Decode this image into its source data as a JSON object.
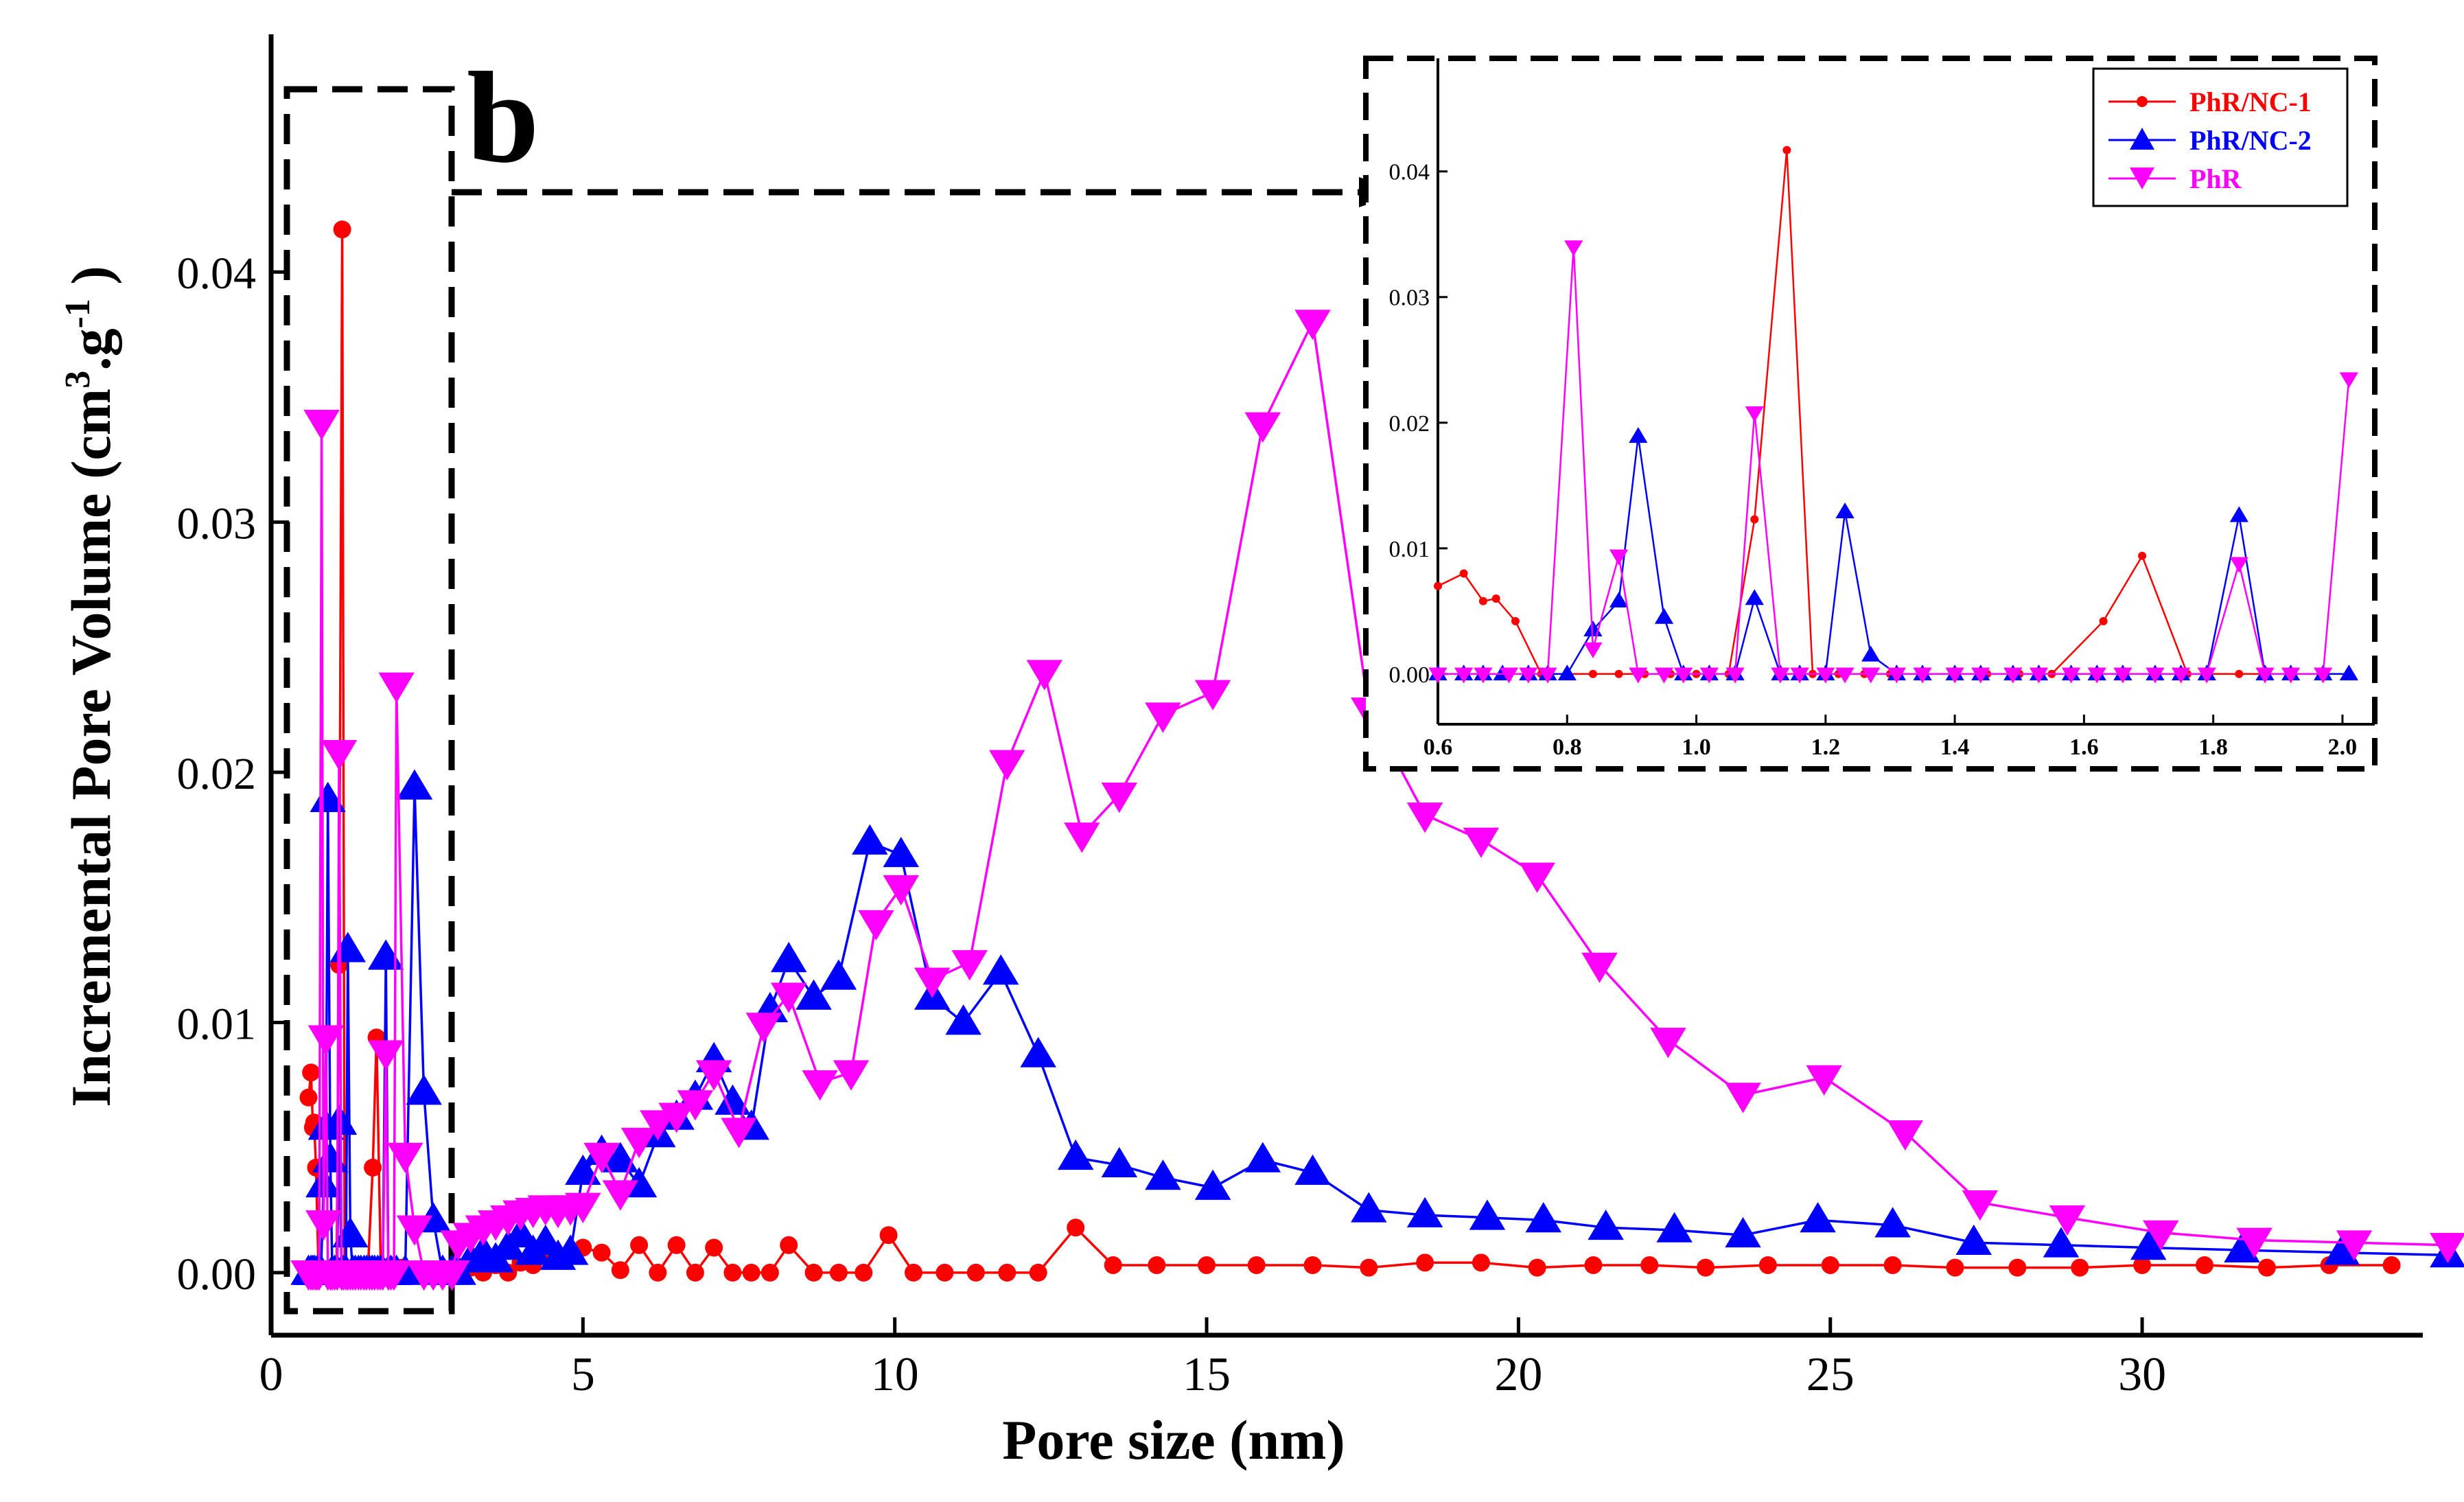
{
  "chart_data": [
    {
      "type": "line",
      "panel_label": "b",
      "xlabel": "Pore size (nm)",
      "ylabel_main": "Incremental Pore Volume (cm",
      "ylabel_sup1": "3",
      "ylabel_mid": ".g",
      "ylabel_sup2": "-1",
      "ylabel_end": " )",
      "xlim": [
        0,
        34.5
      ],
      "ylim": [
        -0.0025,
        0.0495
      ],
      "xticks": [
        0,
        5,
        10,
        15,
        20,
        25,
        30
      ],
      "xtick_labels": [
        "0",
        "5",
        "10",
        "15",
        "20",
        "25",
        "30"
      ],
      "yticks": [
        0.0,
        0.01,
        0.02,
        0.03,
        0.04
      ],
      "ytick_labels": [
        "0.00",
        "0.01",
        "0.02",
        "0.03",
        "0.04"
      ],
      "series": [
        {
          "name": "PhR/NC-1",
          "color": "#ff0000",
          "marker": "circle",
          "x": [
            0.6,
            0.64,
            0.67,
            0.69,
            0.72,
            0.76,
            0.8,
            0.84,
            0.88,
            0.92,
            0.96,
            1.0,
            1.05,
            1.09,
            1.14,
            1.18,
            1.22,
            1.26,
            1.3,
            1.35,
            1.4,
            1.45,
            1.5,
            1.55,
            1.63,
            1.69,
            1.76,
            1.84,
            1.92,
            2.01,
            2.1,
            2.2,
            2.3,
            2.4,
            2.5,
            2.6,
            2.7,
            2.8,
            2.9,
            3.0,
            3.2,
            3.4,
            3.6,
            3.8,
            4.0,
            4.2,
            4.4,
            4.6,
            4.8,
            5.0,
            5.3,
            5.6,
            5.9,
            6.2,
            6.5,
            6.8,
            7.1,
            7.4,
            7.7,
            8.0,
            8.3,
            8.7,
            9.1,
            9.5,
            9.9,
            10.3,
            10.8,
            11.3,
            11.8,
            12.3,
            12.9,
            13.5,
            14.2,
            15.0,
            15.8,
            16.7,
            17.6,
            18.5,
            19.4,
            20.3,
            21.2,
            22.1,
            23.0,
            24.0,
            25.0,
            26.0,
            27.0,
            28.0,
            29.0,
            30.0,
            31.0,
            32.0,
            33.0,
            34.0
          ],
          "y": [
            0.007,
            0.008,
            0.0058,
            0.006,
            0.0042,
            0.0,
            0.0,
            0.0,
            0.0,
            0.0,
            0.0,
            0.0,
            0.0,
            0.0123,
            0.0417,
            0.0,
            0.0,
            0.0,
            0.0,
            0.0,
            0.0,
            0.0,
            0.0,
            0.0,
            0.0042,
            0.0094,
            0.0,
            0.0,
            0.0,
            0.0,
            0.0002,
            0.0,
            0.0,
            0.0,
            0.0,
            0.0,
            0.0,
            0.0,
            0.0,
            0.0,
            0.0002,
            0.0,
            0.0003,
            0.0,
            0.0004,
            0.0003,
            0.0008,
            0.0006,
            0.0007,
            0.001,
            0.0008,
            0.0001,
            0.0011,
            0.0,
            0.0011,
            0.0,
            0.001,
            0.0,
            0.0,
            0.0,
            0.0011,
            0.0,
            0.0,
            0.0,
            0.0015,
            0.0,
            0.0,
            0.0,
            0.0,
            0.0,
            0.0018,
            0.0003,
            0.0003,
            0.0003,
            0.0003,
            0.0003,
            0.0002,
            0.0004,
            0.0004,
            0.0002,
            0.0003,
            0.0003,
            0.0002,
            0.0003,
            0.0003,
            0.0003,
            0.0002,
            0.0002,
            0.0002,
            0.0003,
            0.0003,
            0.0002,
            0.0003,
            0.0003
          ]
        },
        {
          "name": "PhR/NC-2",
          "color": "#0000ff",
          "marker": "triangle-up",
          "x": [
            0.6,
            0.64,
            0.67,
            0.7,
            0.74,
            0.77,
            0.8,
            0.84,
            0.88,
            0.91,
            0.95,
            0.98,
            1.02,
            1.06,
            1.09,
            1.13,
            1.16,
            1.2,
            1.23,
            1.27,
            1.31,
            1.35,
            1.4,
            1.44,
            1.49,
            1.53,
            1.58,
            1.62,
            1.66,
            1.71,
            1.75,
            1.79,
            1.84,
            1.88,
            1.92,
            1.97,
            2.01,
            2.15,
            2.3,
            2.45,
            2.6,
            2.75,
            2.9,
            3.0,
            3.2,
            3.4,
            3.6,
            3.8,
            4.0,
            4.2,
            4.4,
            4.6,
            4.8,
            5.0,
            5.3,
            5.6,
            5.9,
            6.2,
            6.5,
            6.8,
            7.1,
            7.4,
            7.7,
            8.0,
            8.3,
            8.7,
            9.1,
            9.6,
            10.1,
            10.6,
            11.1,
            11.7,
            12.3,
            12.9,
            13.6,
            14.3,
            15.1,
            15.9,
            16.7,
            17.6,
            18.5,
            19.5,
            20.4,
            21.4,
            22.5,
            23.6,
            24.8,
            26.0,
            27.3,
            28.7,
            30.1,
            31.6,
            33.2,
            34.9
          ],
          "y": [
            0.0,
            0.0,
            0.0,
            0.0,
            0.0,
            0.0,
            0.0,
            0.0035,
            0.0058,
            0.0189,
            0.0045,
            0.0,
            0.0,
            0.0,
            0.006,
            0.0,
            0.0,
            0.0,
            0.0129,
            0.0015,
            0.0,
            0.0,
            0.0,
            0.0,
            0.0,
            0.0,
            0.0,
            0.0,
            0.0,
            0.0,
            0.0,
            0.0,
            0.0126,
            0.0,
            0.0,
            0.0,
            0.0,
            0.0,
            0.0194,
            0.0072,
            0.0021,
            0.0,
            0.0,
            0.0,
            0.0005,
            0.0008,
            0.0005,
            0.001,
            0.0015,
            0.0008,
            0.0012,
            0.0006,
            0.0008,
            0.004,
            0.0048,
            0.0045,
            0.0035,
            0.0055,
            0.0062,
            0.007,
            0.0085,
            0.0068,
            0.0058,
            0.0105,
            0.0125,
            0.011,
            0.0118,
            0.0172,
            0.0167,
            0.011,
            0.01,
            0.012,
            0.0087,
            0.0046,
            0.0043,
            0.0038,
            0.0034,
            0.0045,
            0.004,
            0.0025,
            0.0023,
            0.0022,
            0.0021,
            0.0018,
            0.0017,
            0.0015,
            0.0021,
            0.0019,
            0.0012,
            0.0011,
            0.001,
            0.0009,
            0.0008,
            0.0007
          ]
        },
        {
          "name": "PhR",
          "color": "#ff00ff",
          "marker": "triangle-down",
          "x": [
            0.6,
            0.64,
            0.67,
            0.71,
            0.74,
            0.77,
            0.81,
            0.84,
            0.88,
            0.91,
            0.95,
            0.98,
            1.02,
            1.06,
            1.09,
            1.13,
            1.16,
            1.2,
            1.23,
            1.27,
            1.31,
            1.35,
            1.4,
            1.44,
            1.49,
            1.53,
            1.58,
            1.62,
            1.66,
            1.71,
            1.75,
            1.79,
            1.84,
            1.88,
            1.92,
            1.97,
            2.01,
            2.15,
            2.3,
            2.45,
            2.6,
            2.75,
            2.9,
            3.0,
            3.2,
            3.4,
            3.6,
            3.8,
            4.0,
            4.2,
            4.4,
            4.6,
            4.8,
            5.0,
            5.3,
            5.6,
            5.9,
            6.2,
            6.5,
            6.8,
            7.1,
            7.5,
            7.9,
            8.3,
            8.8,
            9.3,
            9.7,
            10.1,
            10.6,
            11.2,
            11.8,
            12.4,
            13.0,
            13.6,
            14.3,
            15.1,
            15.9,
            16.7,
            17.6,
            18.5,
            19.4,
            20.3,
            21.3,
            22.4,
            23.6,
            24.9,
            26.2,
            27.4,
            28.8,
            30.3,
            31.8,
            33.4,
            34.9
          ],
          "y": [
            0.0,
            0.0,
            0.0,
            0.0,
            0.0,
            0.0,
            0.034,
            0.002,
            0.0094,
            0.0,
            0.0,
            0.0,
            0.0,
            0.0,
            0.0208,
            0.0,
            0.0,
            0.0,
            0.0,
            0.0,
            0.0,
            0.0,
            0.0,
            0.0,
            0.0,
            0.0,
            0.0,
            0.0,
            0.0,
            0.0,
            0.0,
            0.0,
            0.0088,
            0.0,
            0.0,
            0.0,
            0.0235,
            0.0047,
            0.0018,
            0.0,
            0.0,
            0.0,
            0.0,
            0.0012,
            0.0015,
            0.0018,
            0.002,
            0.0022,
            0.0024,
            0.0025,
            0.0026,
            0.0025,
            0.0026,
            0.0027,
            0.0047,
            0.0032,
            0.0053,
            0.006,
            0.0063,
            0.0068,
            0.008,
            0.0057,
            0.0099,
            0.0111,
            0.0076,
            0.008,
            0.014,
            0.0154,
            0.0117,
            0.0124,
            0.0204,
            0.024,
            0.0175,
            0.0191,
            0.0223,
            0.0232,
            0.0339,
            0.038,
            0.0225,
            0.0183,
            0.0173,
            0.0159,
            0.0123,
            0.0093,
            0.0071,
            0.0078,
            0.0056,
            0.0028,
            0.0022,
            0.0016,
            0.0013,
            0.0012,
            0.0011
          ]
        }
      ]
    },
    {
      "type": "line",
      "role": "inset",
      "xlim": [
        0.6,
        2.05
      ],
      "ylim": [
        -0.004,
        0.049
      ],
      "xticks": [
        0.6,
        0.8,
        1.0,
        1.2,
        1.4,
        1.6,
        1.8,
        2.0
      ],
      "xtick_labels": [
        "0.6",
        "0.8",
        "1.0",
        "1.2",
        "1.4",
        "1.6",
        "1.8",
        "2.0"
      ],
      "yticks": [
        0.0,
        0.01,
        0.02,
        0.03,
        0.04
      ],
      "ytick_labels": [
        "0.00",
        "0.01",
        "0.02",
        "0.03",
        "0.04"
      ],
      "legend": [
        "PhR/NC-1",
        "PhR/NC-2",
        "PhR"
      ],
      "legend_position": "top-right",
      "shows": "zoom of main series for 0.6-2.05 nm"
    }
  ]
}
